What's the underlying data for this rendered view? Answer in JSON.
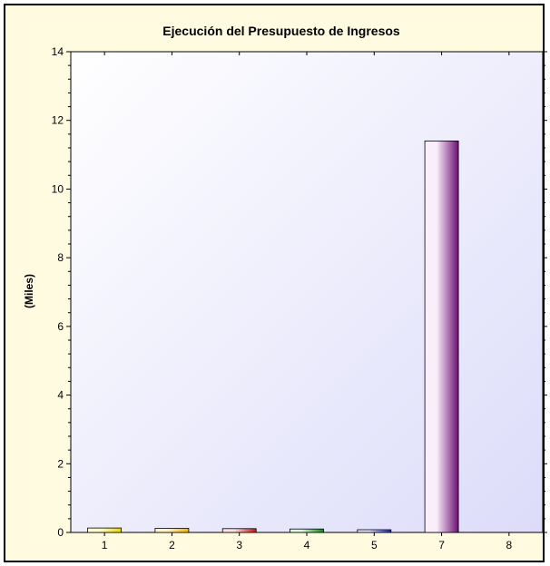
{
  "chart_data": {
    "type": "bar",
    "title": "Ejecución del Presupuesto de Ingresos",
    "xlabel": "",
    "ylabel": "(Miles)",
    "categories": [
      "1",
      "2",
      "3",
      "4",
      "5",
      "7",
      "8"
    ],
    "values": [
      0.13,
      0.12,
      0.11,
      0.1,
      0.08,
      11.4,
      0
    ],
    "ylim": [
      0,
      14
    ],
    "yticks": [
      0,
      2,
      4,
      6,
      8,
      10,
      12,
      14
    ],
    "grid": false,
    "legend": "none",
    "bar_colors": [
      {
        "light": "#ffffd0",
        "dark": "#e8d800"
      },
      {
        "light": "#fff2cc",
        "dark": "#f2b600"
      },
      {
        "light": "#ffe0e0",
        "dark": "#d01010"
      },
      {
        "light": "#e0f5e0",
        "dark": "#138a13"
      },
      {
        "light": "#e6e6ff",
        "dark": "#2020c0"
      },
      {
        "light": "#fbeefb",
        "dark": "#6b0f72"
      },
      {
        "light": "#eeeeee",
        "dark": "#808080"
      }
    ],
    "plot_background": {
      "from": "#ffffff",
      "to": "#dcdcfa"
    },
    "frame_background": "#fffbe0"
  }
}
